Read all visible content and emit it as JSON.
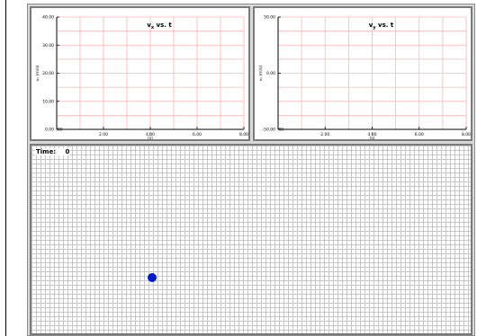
{
  "colors": {
    "grid_line": "#ffb3b3",
    "axis": "#000000",
    "sim_grid": "#c6c6c6",
    "ball": "#0019c8",
    "panel_border": "#7a7a7a",
    "app_background": "#d9d9d9"
  },
  "graphs": [
    {
      "id": "vx",
      "title_main": "v",
      "title_sub": "x",
      "title_rest": " vs. t",
      "ylabel": "vₓ (m/s)",
      "xlabel_main": "t",
      "xlabel_unit": "(s)",
      "xlim": [
        0,
        8
      ],
      "ylim": [
        0,
        40
      ],
      "xticks": [
        "2.00",
        "4.00",
        "6.00",
        "8.00"
      ],
      "xtick_values": [
        2,
        4,
        6,
        8
      ],
      "x_origin_label": ".00",
      "yticks": [
        "10.00",
        "20.00",
        "30.00",
        "40.00"
      ],
      "ytick_values": [
        10,
        20,
        30,
        40
      ],
      "y_origin_label": "0.00"
    },
    {
      "id": "vy",
      "title_main": "v",
      "title_sub": "y",
      "title_rest": " vs. t",
      "ylabel": "vᵧ (m/s)",
      "xlabel_main": "t",
      "xlabel_unit": "(s)",
      "xlim": [
        0,
        8
      ],
      "ylim": [
        -50,
        50
      ],
      "xticks": [
        "2.00",
        "4.00",
        "6.00",
        "8.00"
      ],
      "xtick_values": [
        2,
        4,
        6,
        8
      ],
      "x_origin_label": ".00",
      "yticks": [
        "0.00",
        "50.00"
      ],
      "ytick_values": [
        0,
        50
      ],
      "y_origin_label": "-50.00"
    }
  ],
  "simulation": {
    "time_label": "Time:",
    "time_value": "0"
  }
}
